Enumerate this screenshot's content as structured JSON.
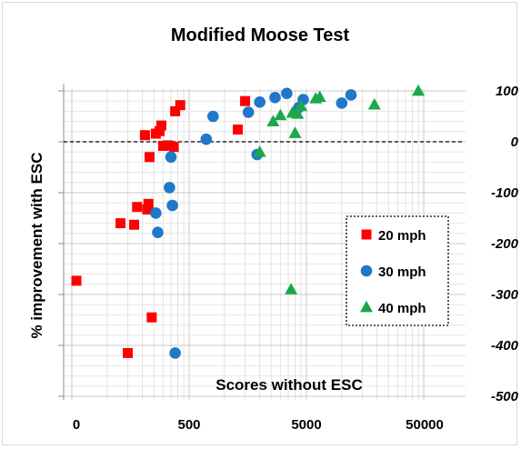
{
  "chart_data": {
    "type": "scatter",
    "title": "Modified Moose Test",
    "xlabel": "Scores without ESC",
    "ylabel": "% improvement with ESC",
    "x_scale": "log",
    "x_tick_labels": [
      "0",
      "500",
      "5000",
      "50000"
    ],
    "y_tick_labels": [
      "100",
      "0",
      "-100",
      "-200",
      "-300",
      "-400",
      "-500"
    ],
    "ylim": [
      -500,
      100
    ],
    "grid": true,
    "reference_line_y": 0,
    "legend_position": "lower-right",
    "series": [
      {
        "name": "20 mph",
        "marker": "square",
        "color": "#ff0000",
        "points": [
          [
            0,
            -273
          ],
          [
            130,
            -160
          ],
          [
            170,
            -163
          ],
          [
            180,
            -128
          ],
          [
            150,
            -415
          ],
          [
            210,
            13
          ],
          [
            220,
            -133
          ],
          [
            225,
            -122
          ],
          [
            230,
            -30
          ],
          [
            240,
            -345
          ],
          [
            260,
            16
          ],
          [
            280,
            21
          ],
          [
            290,
            32
          ],
          [
            300,
            -8
          ],
          [
            330,
            -7
          ],
          [
            370,
            -10
          ],
          [
            380,
            60
          ],
          [
            420,
            72
          ],
          [
            1300,
            24
          ],
          [
            1500,
            80
          ]
        ]
      },
      {
        "name": "30 mph",
        "marker": "circle",
        "color": "#1f78c8",
        "points": [
          [
            260,
            -140
          ],
          [
            270,
            -178
          ],
          [
            350,
            -30
          ],
          [
            340,
            -90
          ],
          [
            360,
            -125
          ],
          [
            380,
            -415
          ],
          [
            700,
            5
          ],
          [
            800,
            50
          ],
          [
            1600,
            58
          ],
          [
            1900,
            -25
          ],
          [
            2000,
            78
          ],
          [
            2700,
            87
          ],
          [
            3400,
            95
          ],
          [
            4300,
            67
          ],
          [
            4700,
            83
          ],
          [
            10000,
            76
          ],
          [
            12000,
            92
          ]
        ]
      },
      {
        "name": "40 mph",
        "marker": "triangle",
        "color": "#1ca84a",
        "points": [
          [
            2000,
            -20
          ],
          [
            2600,
            40
          ],
          [
            3000,
            52
          ],
          [
            3800,
            57
          ],
          [
            4000,
            17
          ],
          [
            4200,
            55
          ],
          [
            4500,
            70
          ],
          [
            3700,
            -290
          ],
          [
            6000,
            85
          ],
          [
            6500,
            88
          ],
          [
            19000,
            73
          ],
          [
            45000,
            100
          ]
        ]
      }
    ]
  }
}
